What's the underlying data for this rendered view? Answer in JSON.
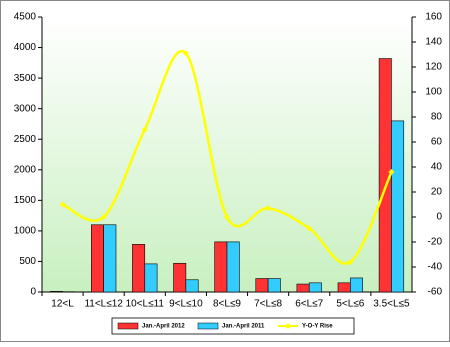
{
  "chart_data": {
    "type": "bar-line",
    "categories": [
      "12<L",
      "11<L≤12",
      "10<L≤11",
      "9<L≤10",
      "8<L≤9",
      "7<L≤8",
      "6<L≤7",
      "5<L≤6",
      "3.5<L≤5"
    ],
    "series": [
      {
        "name": "Jan.-April 2012",
        "color": "#ff3333",
        "type": "bar",
        "values": [
          10,
          1100,
          780,
          470,
          820,
          220,
          130,
          150,
          3820
        ]
      },
      {
        "name": "Jan.-April 2011",
        "color": "#33ccff",
        "type": "bar",
        "values": [
          5,
          1100,
          460,
          200,
          820,
          220,
          150,
          230,
          2800
        ]
      },
      {
        "name": "Y-O-Y Rise",
        "color": "#ffff00",
        "type": "line",
        "axis": "y2",
        "values": [
          10,
          0,
          70,
          131,
          0,
          7,
          -9,
          -36,
          36
        ]
      }
    ],
    "ylim": [
      0,
      4500
    ],
    "yticks": [
      0,
      500,
      1000,
      1500,
      2000,
      2500,
      3000,
      3500,
      4000,
      4500
    ],
    "y2lim": [
      -60,
      160
    ],
    "y2ticks": [
      -60,
      -40,
      -20,
      0,
      20,
      40,
      60,
      80,
      100,
      120,
      140,
      160
    ]
  }
}
